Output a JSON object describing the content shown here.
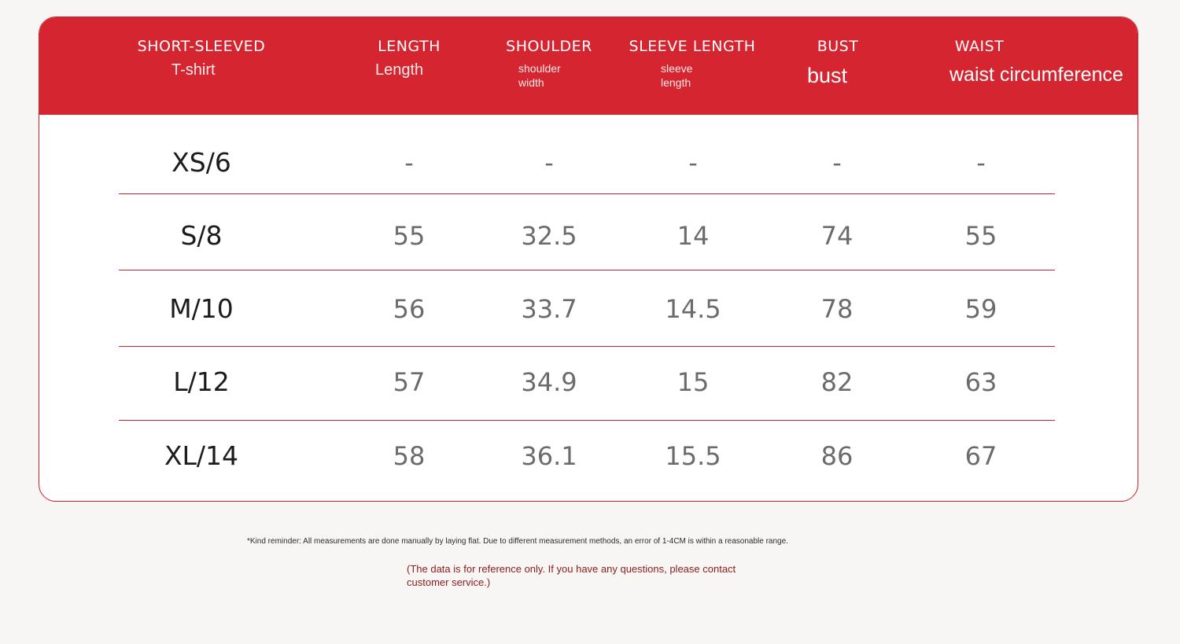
{
  "colors": {
    "header_bg": "#d42530",
    "accent": "#c8242d",
    "page_bg": "#f7f6f4"
  },
  "header": {
    "columns": [
      {
        "title": "SHORT-SLEEVED",
        "subtitle": "T-shirt"
      },
      {
        "title": "LENGTH",
        "subtitle": "Length"
      },
      {
        "title": "SHOULDER",
        "subtitle": "shoulder width"
      },
      {
        "title": "SLEEVE LENGTH",
        "subtitle": "sleeve length"
      },
      {
        "title": "BUST",
        "subtitle": "bust"
      },
      {
        "title": "WAIST",
        "subtitle": "waist circumference"
      }
    ]
  },
  "rows": [
    {
      "size": "XS/6",
      "values": [
        "-",
        "-",
        "-",
        "-",
        "-"
      ]
    },
    {
      "size": "S/8",
      "values": [
        "55",
        "32.5",
        "14",
        "74",
        "55"
      ]
    },
    {
      "size": "M/10",
      "values": [
        "56",
        "33.7",
        "14.5",
        "78",
        "59"
      ]
    },
    {
      "size": "L/12",
      "values": [
        "57",
        "34.9",
        "15",
        "82",
        "63"
      ]
    },
    {
      "size": "XL/14",
      "values": [
        "58",
        "36.1",
        "15.5",
        "86",
        "67"
      ]
    }
  ],
  "notes": {
    "reminder": "*Kind reminder: All measurements are done manually by laying flat. Due to different measurement methods, an error of 1-4CM is within a reasonable range.",
    "contact": "(The data is for reference only. If you have any questions, please contact customer service.)"
  }
}
